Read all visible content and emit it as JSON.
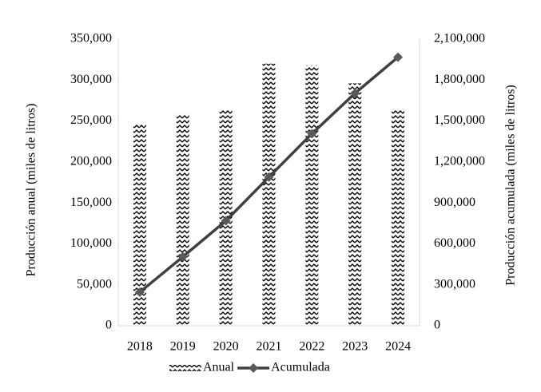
{
  "chart_data": {
    "type": "bar-line",
    "categories": [
      "2018",
      "2019",
      "2020",
      "2021",
      "2022",
      "2023",
      "2024"
    ],
    "series": [
      {
        "name": "Anual",
        "type": "bar",
        "color": "#000000",
        "values": [
          246000,
          259000,
          264000,
          320000,
          318000,
          296000,
          265000
        ]
      },
      {
        "name": "Acumulada",
        "type": "line",
        "axis": "y2",
        "color": "#404040",
        "values": [
          246000,
          505000,
          769000,
          1089000,
          1407000,
          1703000,
          1968000
        ]
      }
    ],
    "y_label": "Producción anual (miles de litros)",
    "y2_label": "Producción acumulada (miles de litros)",
    "ylim": [
      0,
      350000
    ],
    "yticks": [
      0,
      {
        "value": 50000,
        "label": "50,000"
      },
      {
        "value": 100000,
        "label": "100,000"
      },
      {
        "value": 150000,
        "label": "150,000"
      },
      {
        "value": 200000,
        "label": "200,000"
      },
      {
        "value": 250000,
        "label": "250,000"
      },
      {
        "value": 300000,
        "label": "300,000"
      },
      {
        "value": 350000,
        "label": "350,000"
      }
    ],
    "y2lim": [
      0,
      2100000
    ],
    "y2ticks": [
      0,
      {
        "value": 300000,
        "label": "300,000"
      },
      {
        "value": 600000,
        "label": "600,000"
      },
      {
        "value": 900000,
        "label": "900,000"
      },
      {
        "value": 1200000,
        "label": "1,200,000"
      },
      {
        "value": 1500000,
        "label": "1,500,000"
      },
      {
        "value": 1800000,
        "label": "1,800,000"
      },
      {
        "value": 2100000,
        "label": "2,100,000"
      }
    ],
    "grid": false,
    "legend": "bottom"
  }
}
